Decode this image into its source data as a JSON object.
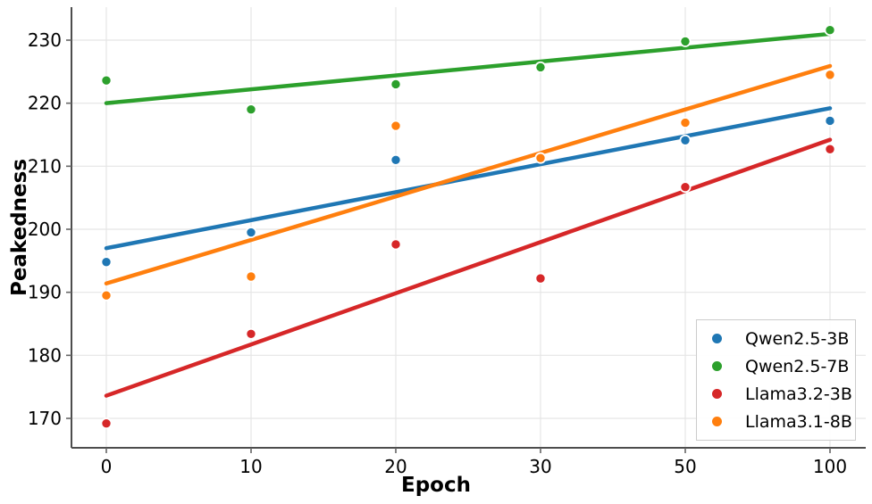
{
  "chart_data": {
    "type": "scatter",
    "title": "",
    "xlabel": "Epoch",
    "ylabel": "Peakedness",
    "categories": [
      "0",
      "10",
      "20",
      "30",
      "50",
      "100"
    ],
    "yticks": [
      170,
      180,
      190,
      200,
      210,
      220,
      230
    ],
    "ylim": [
      165.3,
      235.2
    ],
    "grid": true,
    "legend_position": "lower right",
    "series": [
      {
        "name": "Qwen2.5-3B",
        "color": "#1f77b4",
        "points": [
          194.8,
          199.5,
          211.0,
          null,
          214.1,
          217.2
        ],
        "trend": {
          "start": 197.0,
          "end": 219.2
        }
      },
      {
        "name": "Qwen2.5-7B",
        "color": "#2ca02c",
        "points": [
          223.6,
          219.0,
          223.0,
          225.7,
          229.8,
          231.6
        ],
        "trend": {
          "start": 220.0,
          "end": 231.0
        }
      },
      {
        "name": "Llama3.2-3B",
        "color": "#d62728",
        "points": [
          169.2,
          183.4,
          197.6,
          192.2,
          206.7,
          212.7
        ],
        "trend": {
          "start": 173.6,
          "end": 214.2
        }
      },
      {
        "name": "Llama3.1-8B",
        "color": "#ff7f0e",
        "points": [
          189.5,
          192.5,
          216.4,
          211.3,
          216.9,
          224.5
        ],
        "trend": {
          "start": 191.4,
          "end": 225.9
        }
      }
    ]
  },
  "style": {
    "gridline_color": "#e5e5e5",
    "spine_color": "#4d4d4d",
    "tick_color": "#666666",
    "point_edge_color": "#ffffff"
  }
}
